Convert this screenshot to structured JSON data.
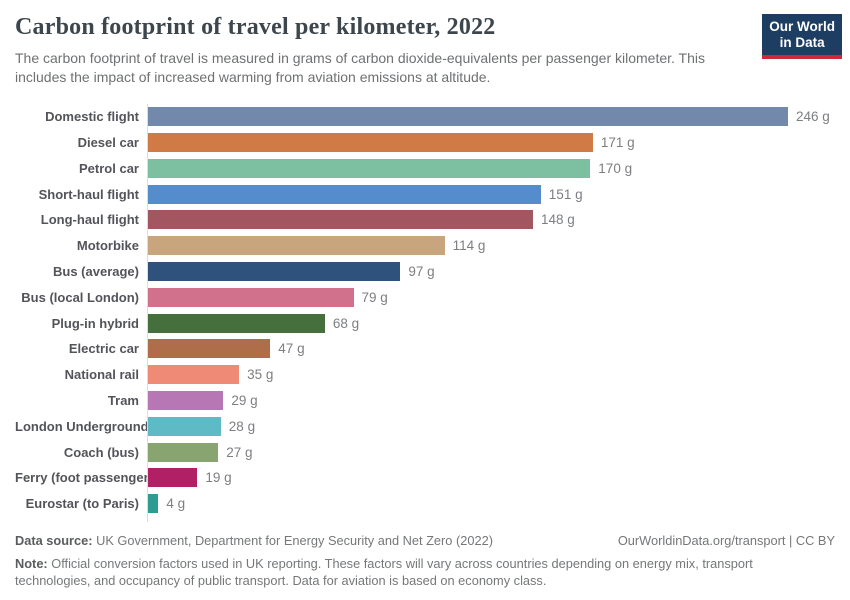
{
  "header": {
    "title": "Carbon footprint of travel per kilometer, 2022",
    "subtitle": "The carbon footprint of travel is measured in grams of carbon dioxide-equivalents per passenger kilometer. This includes the impact of increased warming from aviation emissions at altitude.",
    "logo": {
      "line1": "Our World",
      "line2": "in Data",
      "bg_color": "#1d3d63",
      "stripe_color": "#cc2a36"
    }
  },
  "chart_data": {
    "type": "bar",
    "orientation": "horizontal",
    "title": "Carbon footprint of travel per kilometer, 2022",
    "xlabel": "grams of carbon dioxide-equivalents per passenger kilometer",
    "xlim": [
      0,
      246
    ],
    "grid": false,
    "legend": "none",
    "categories": [
      "Domestic flight",
      "Diesel car",
      "Petrol car",
      "Short-haul flight",
      "Long-haul flight",
      "Motorbike",
      "Bus (average)",
      "Bus (local London)",
      "Plug-in hybrid",
      "Electric car",
      "National rail",
      "Tram",
      "London Underground",
      "Coach (bus)",
      "Ferry (foot passenger)",
      "Eurostar (to Paris)"
    ],
    "values": [
      246,
      171,
      170,
      151,
      148,
      114,
      97,
      79,
      68,
      47,
      35,
      29,
      28,
      27,
      19,
      4
    ],
    "value_labels": [
      "246 g",
      "171 g",
      "170 g",
      "151 g",
      "148 g",
      "114 g",
      "97 g",
      "79 g",
      "68 g",
      "47 g",
      "35 g",
      "29 g",
      "28 g",
      "27 g",
      "19 g",
      "4 g"
    ],
    "bar_colors": [
      "#7289ac",
      "#d07b45",
      "#7cc0a1",
      "#558ccb",
      "#a2565f",
      "#c9a57d",
      "#2e527b",
      "#d1718b",
      "#466f3e",
      "#b06d4a",
      "#ee8a76",
      "#b777b4",
      "#5ebac5",
      "#88a471",
      "#b12065",
      "#2e9c90"
    ],
    "axis_color": "#dcdfe2"
  },
  "footer": {
    "source_label": "Data source:",
    "source_text": " UK Government, Department for Energy Security and Net Zero (2022)",
    "rights": "OurWorldinData.org/transport | CC BY",
    "note_label": "Note:",
    "note_text": " Official conversion factors used in UK reporting. These factors will vary across countries depending on energy mix, transport technologies, and occupancy of public transport. Data for aviation is based on economy class."
  }
}
